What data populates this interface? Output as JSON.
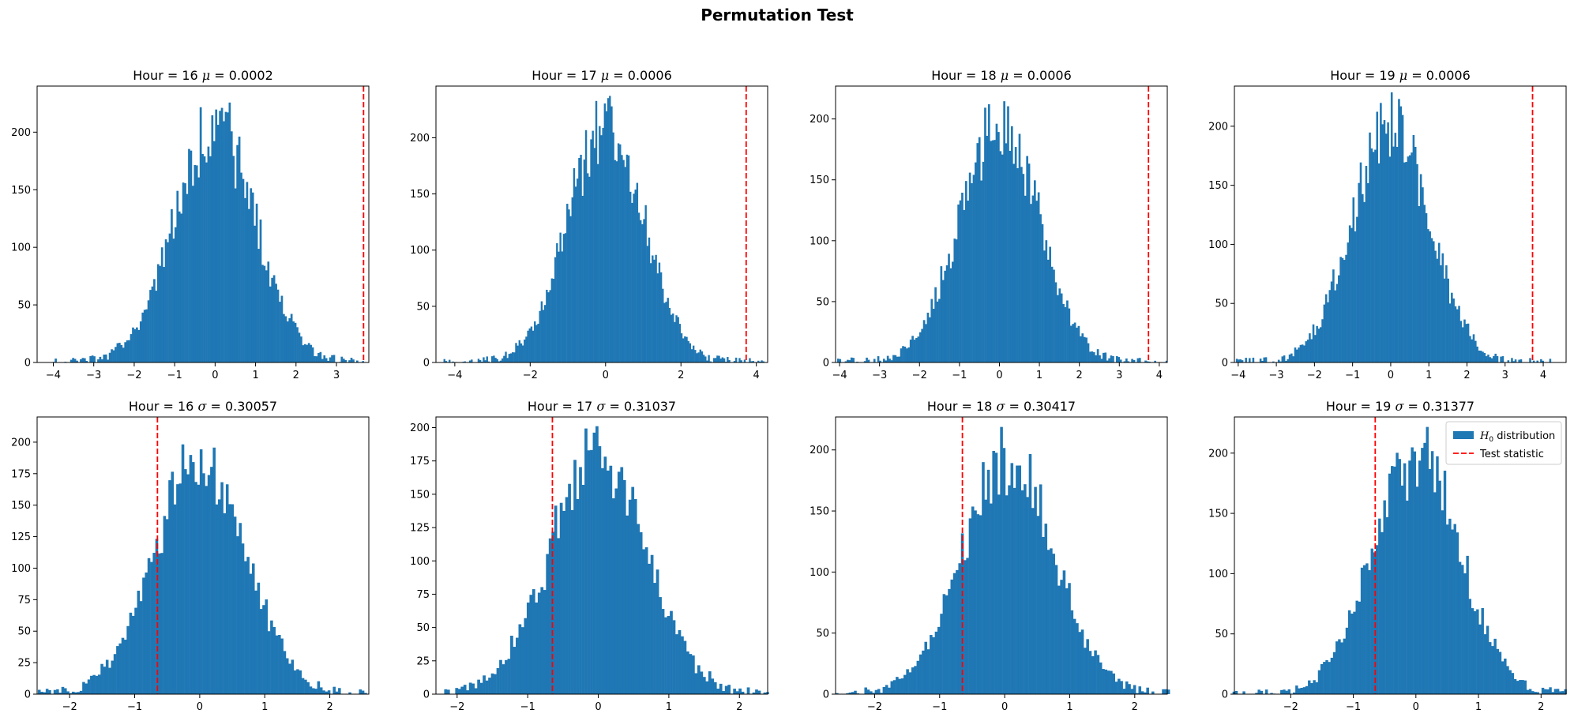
{
  "figure": {
    "suptitle": "Permutation Test"
  },
  "colors": {
    "bars": "#1f77b4",
    "test_line": "#ff0000",
    "axes": "#000000",
    "background": "#ffffff"
  },
  "legend": {
    "placement": "upper-right",
    "entries": [
      "$H_0$ distribution",
      "Test statistic"
    ],
    "entry_labels": [
      "distribution",
      "Test statistic"
    ],
    "math_prefix": "H",
    "math_sub": "0"
  },
  "chart_data": [
    {
      "type": "bar",
      "title": "Hour = 16 $\\mu$ = 0.0002",
      "title_parts": [
        "Hour = 16 ",
        "μ",
        " = 0.0002"
      ],
      "xlabel": "",
      "ylabel": "",
      "xlim": [
        -4.4,
        3.8
      ],
      "ylim": [
        0,
        240
      ],
      "xticks": [
        -4,
        -3,
        -2,
        -1,
        0,
        1,
        2,
        3
      ],
      "yticks": [
        0,
        50,
        100,
        150,
        200
      ],
      "bins": 180,
      "mean": 0.0,
      "sd": 1.0,
      "peak": 228,
      "test_statistic": 3.67,
      "seed": 1601,
      "legend": false
    },
    {
      "type": "bar",
      "title": "Hour = 17 $\\mu$ = 0.0006",
      "title_parts": [
        "Hour = 17 ",
        "μ",
        " = 0.0006"
      ],
      "xlabel": "",
      "ylabel": "",
      "xlim": [
        -4.5,
        4.3
      ],
      "ylim": [
        0,
        246
      ],
      "xticks": [
        -4,
        -2,
        0,
        2,
        4
      ],
      "yticks": [
        0,
        50,
        100,
        150,
        200
      ],
      "bins": 190,
      "mean": 0.0,
      "sd": 1.0,
      "peak": 237,
      "test_statistic": 3.73,
      "seed": 1701,
      "legend": false
    },
    {
      "type": "bar",
      "title": "Hour = 18 $\\mu$ = 0.0006",
      "title_parts": [
        "Hour = 18 ",
        "μ",
        " = 0.0006"
      ],
      "xlabel": "",
      "ylabel": "",
      "xlim": [
        -4.1,
        4.2
      ],
      "ylim": [
        0,
        227
      ],
      "xticks": [
        -4,
        -3,
        -2,
        -1,
        0,
        1,
        2,
        3,
        4
      ],
      "yticks": [
        0,
        50,
        100,
        150,
        200
      ],
      "bins": 180,
      "mean": 0.0,
      "sd": 1.0,
      "peak": 217,
      "test_statistic": 3.73,
      "seed": 1801,
      "legend": false
    },
    {
      "type": "bar",
      "title": "Hour = 19 $\\mu$ = 0.0006",
      "title_parts": [
        "Hour = 19 ",
        "μ",
        " = 0.0006"
      ],
      "xlabel": "",
      "ylabel": "",
      "xlim": [
        -4.1,
        4.6
      ],
      "ylim": [
        0,
        234
      ],
      "xticks": [
        -4,
        -3,
        -2,
        -1,
        0,
        1,
        2,
        3,
        4
      ],
      "yticks": [
        0,
        50,
        100,
        150,
        200
      ],
      "bins": 180,
      "mean": 0.0,
      "sd": 1.0,
      "peak": 224,
      "test_statistic": 3.72,
      "seed": 1901,
      "legend": false
    },
    {
      "type": "bar",
      "title": "Hour = 16 $\\sigma$ = 0.30057",
      "title_parts": [
        "Hour = 16 ",
        "σ",
        " = 0.30057"
      ],
      "xlabel": "",
      "ylabel": "",
      "xlim": [
        -2.5,
        2.6
      ],
      "ylim": [
        0,
        220
      ],
      "xticks": [
        -2,
        -1,
        0,
        1,
        2
      ],
      "yticks": [
        0,
        25,
        50,
        75,
        100,
        125,
        150,
        175,
        200
      ],
      "bins": 150,
      "mean": 0.0,
      "sd": 0.7,
      "peak": 208,
      "test_statistic": -0.65,
      "seed": 1602,
      "legend": false
    },
    {
      "type": "bar",
      "title": "Hour = 17 $\\sigma$ = 0.31037",
      "title_parts": [
        "Hour = 17 ",
        "σ",
        " = 0.31037"
      ],
      "xlabel": "",
      "ylabel": "",
      "xlim": [
        -2.3,
        2.4
      ],
      "ylim": [
        0,
        208
      ],
      "xticks": [
        -2,
        -1,
        0,
        1,
        2
      ],
      "yticks": [
        0,
        25,
        50,
        75,
        100,
        125,
        150,
        175,
        200
      ],
      "bins": 150,
      "mean": 0.0,
      "sd": 0.68,
      "peak": 199,
      "test_statistic": -0.65,
      "seed": 1702,
      "legend": false
    },
    {
      "type": "bar",
      "title": "Hour = 18 $\\sigma$ = 0.30417",
      "title_parts": [
        "Hour = 18 ",
        "σ",
        " = 0.30417"
      ],
      "xlabel": "",
      "ylabel": "",
      "xlim": [
        -2.6,
        2.5
      ],
      "ylim": [
        0,
        227
      ],
      "xticks": [
        -2,
        -1,
        0,
        1,
        2
      ],
      "yticks": [
        0,
        50,
        100,
        150,
        200
      ],
      "bins": 150,
      "mean": 0.05,
      "sd": 0.7,
      "peak": 216,
      "test_statistic": -0.65,
      "seed": 1802,
      "legend": false
    },
    {
      "type": "bar",
      "title": "Hour = 19 $\\sigma$ = 0.31377",
      "title_parts": [
        "Hour = 19 ",
        "σ",
        " = 0.31377"
      ],
      "xlabel": "",
      "ylabel": "",
      "xlim": [
        -2.9,
        2.4
      ],
      "ylim": [
        0,
        230
      ],
      "xticks": [
        -2,
        -1,
        0,
        1,
        2
      ],
      "yticks": [
        0,
        50,
        100,
        150,
        200
      ],
      "bins": 150,
      "mean": 0.0,
      "sd": 0.7,
      "peak": 218,
      "test_statistic": -0.65,
      "seed": 1902,
      "legend": true
    }
  ]
}
